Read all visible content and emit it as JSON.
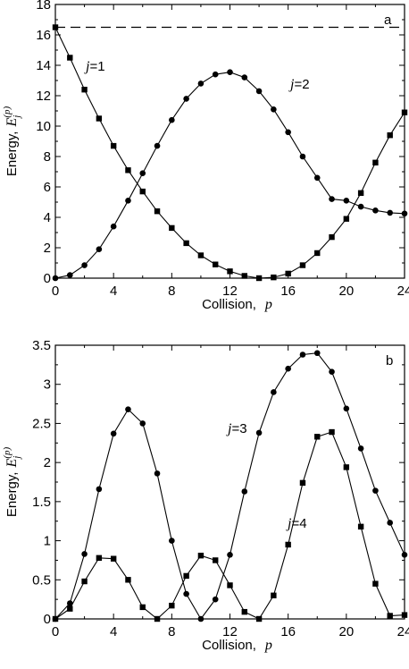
{
  "chart_data": [
    {
      "type": "line",
      "panel_label": "a",
      "xlabel": "Collision,",
      "xlabel_var": "p",
      "ylabel": "Energy,",
      "ylabel_var": "E",
      "ylabel_sub": "j",
      "ylabel_sup": "(p)",
      "xlim": [
        0,
        24
      ],
      "ylim": [
        0,
        18
      ],
      "xticks": [
        0,
        4,
        8,
        12,
        16,
        20,
        24
      ],
      "yticks": [
        0,
        2,
        4,
        6,
        8,
        10,
        12,
        14,
        16,
        18
      ],
      "grid": false,
      "reference_line": {
        "y": 16.5,
        "style": "dashed"
      },
      "series": [
        {
          "name_var": "j",
          "name_eq": "=1",
          "marker": "square",
          "x": [
            0,
            1,
            2,
            3,
            4,
            5,
            6,
            7,
            8,
            9,
            10,
            11,
            12,
            13,
            14,
            15,
            16,
            17,
            18,
            19,
            20,
            21,
            22,
            23,
            24
          ],
          "y": [
            16.5,
            14.5,
            12.4,
            10.5,
            8.7,
            7.1,
            5.7,
            4.4,
            3.3,
            2.3,
            1.5,
            0.9,
            0.45,
            0.15,
            0.0,
            0.05,
            0.3,
            0.85,
            1.65,
            2.7,
            3.9,
            5.6,
            7.6,
            9.4,
            10.9
          ]
        },
        {
          "name_var": "j",
          "name_eq": "=2",
          "marker": "circle",
          "x": [
            0,
            1,
            2,
            3,
            4,
            5,
            6,
            7,
            8,
            9,
            10,
            11,
            12,
            13,
            14,
            15,
            16,
            17,
            18,
            19,
            20,
            21,
            22,
            23,
            24
          ],
          "y": [
            0.0,
            0.2,
            0.85,
            1.9,
            3.4,
            5.1,
            6.9,
            8.7,
            10.4,
            11.8,
            12.8,
            13.4,
            13.55,
            13.2,
            12.3,
            11.1,
            9.6,
            8.0,
            6.6,
            5.2,
            5.1,
            4.7,
            4.45,
            4.3,
            4.25
          ]
        }
      ]
    },
    {
      "type": "line",
      "panel_label": "b",
      "xlabel": "Collision,",
      "xlabel_var": "p",
      "ylabel": "Energy,",
      "ylabel_var": "E",
      "ylabel_sub": "j",
      "ylabel_sup": "(p)",
      "xlim": [
        0,
        24
      ],
      "ylim": [
        0,
        3.5
      ],
      "xticks": [
        0,
        4,
        8,
        12,
        16,
        20,
        24
      ],
      "yticks": [
        0,
        0.5,
        1,
        1.5,
        2,
        2.5,
        3,
        3.5
      ],
      "ytick_labels": [
        "0",
        "0.5",
        "1",
        "1.5",
        "2",
        "2.5",
        "3",
        "3.5"
      ],
      "grid": false,
      "series": [
        {
          "name_var": "j",
          "name_eq": "=3",
          "marker": "circle",
          "x": [
            0,
            1,
            2,
            3,
            4,
            5,
            6,
            7,
            8,
            9,
            10,
            11,
            12,
            13,
            14,
            15,
            16,
            17,
            18,
            19,
            20,
            21,
            22,
            23,
            24
          ],
          "y": [
            0.0,
            0.2,
            0.83,
            1.66,
            2.37,
            2.68,
            2.5,
            1.86,
            1.0,
            0.32,
            0.0,
            0.25,
            0.82,
            1.63,
            2.38,
            2.9,
            3.2,
            3.38,
            3.4,
            3.16,
            2.69,
            2.18,
            1.64,
            1.23,
            0.82
          ]
        },
        {
          "name_var": "j",
          "name_eq": "=4",
          "marker": "square",
          "x": [
            0,
            1,
            2,
            3,
            4,
            5,
            6,
            7,
            8,
            9,
            10,
            11,
            12,
            13,
            14,
            15,
            16,
            17,
            18,
            19,
            20,
            21,
            22,
            23,
            24
          ],
          "y": [
            0.0,
            0.13,
            0.48,
            0.78,
            0.77,
            0.5,
            0.15,
            0.0,
            0.17,
            0.55,
            0.81,
            0.75,
            0.43,
            0.09,
            0.0,
            0.3,
            0.95,
            1.74,
            2.33,
            2.39,
            1.94,
            1.18,
            0.45,
            0.04,
            0.05
          ]
        }
      ]
    }
  ]
}
